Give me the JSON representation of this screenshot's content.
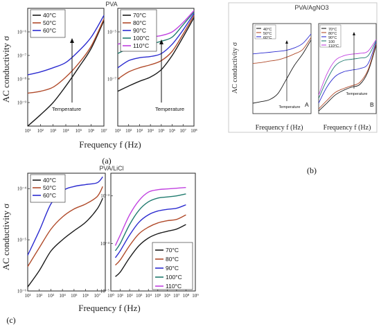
{
  "figures": {
    "a": {
      "title": "PVA",
      "caption": "(a)",
      "ylabel": "AC conductivity σ",
      "xlabel": "Frequency f (Hz)",
      "annotation": "Temperature"
    },
    "b": {
      "title": "PVA/AgNO3",
      "caption": "(b)",
      "ylabel": "AC conductivity σ",
      "xlabel": "Frequency f (Hz)",
      "annotation": "Temperature",
      "panel_letters": [
        "A",
        "B"
      ]
    },
    "c": {
      "title": "PVA/LiCl",
      "caption": "(c)",
      "ylabel": "AC conductivity σ",
      "xlabel": "Frequency f (Hz)"
    }
  },
  "colors": {
    "40": "#1a1a1a",
    "50": "#b04a2a",
    "60": "#2b2bd0",
    "70": "#1a1a1a",
    "80": "#b04a2a",
    "90": "#2b2bd0",
    "100": "#1f7a6e",
    "110": "#c040e0"
  },
  "chart_data": [
    {
      "id": "a-left",
      "type": "line",
      "x_scale": "log",
      "y_scale": "log",
      "xlim": [
        10,
        10000000
      ],
      "ylim": [
        1e-10,
        1e-05
      ],
      "xticks": [
        "10¹",
        "10²",
        "10³",
        "10⁴",
        "10⁵",
        "10⁶",
        "10⁷"
      ],
      "yticks": [
        "10⁻⁹",
        "10⁻⁸",
        "10⁻⁷",
        "10⁻⁶"
      ],
      "legend_position": "top-left",
      "series": [
        {
          "name": "40°C",
          "color_key": "40",
          "x": [
            10,
            100,
            1000,
            10000,
            100000,
            1000000,
            10000000
          ],
          "y": [
            1e-10,
            3e-10,
            1e-09,
            5e-09,
            3e-08,
            2e-07,
            3e-06
          ]
        },
        {
          "name": "50°C",
          "color_key": "50",
          "x": [
            10,
            100,
            1000,
            10000,
            100000,
            1000000,
            10000000
          ],
          "y": [
            2.5e-09,
            3e-09,
            4.5e-09,
            1.2e-08,
            4.5e-08,
            2.5e-07,
            3.5e-06
          ]
        },
        {
          "name": "60°C",
          "color_key": "60",
          "x": [
            10,
            100,
            1000,
            10000,
            100000,
            1000000,
            10000000
          ],
          "y": [
            1.5e-08,
            2e-08,
            3e-08,
            5e-08,
            1.5e-07,
            6e-07,
            5e-06
          ]
        }
      ]
    },
    {
      "id": "a-right",
      "type": "line",
      "x_scale": "log",
      "y_scale": "log",
      "xlim": [
        10,
        100000000
      ],
      "ylim": [
        1e-09,
        0.0001
      ],
      "xticks": [
        "10¹",
        "10²",
        "10³",
        "10⁴",
        "10⁵",
        "10⁶",
        "10⁷",
        "10⁸"
      ],
      "yticks": [
        "10⁻⁷",
        "10⁻⁵"
      ],
      "legend_position": "top-left",
      "series": [
        {
          "name": "70°C",
          "color_key": "70",
          "x": [
            10,
            100,
            1000,
            10000,
            100000,
            1000000,
            10000000,
            100000000
          ],
          "y": [
            3e-08,
            5e-08,
            8e-08,
            1.2e-07,
            2.5e-07,
            1e-06,
            6e-06,
            4e-05
          ]
        },
        {
          "name": "80°C",
          "color_key": "80",
          "x": [
            10,
            100,
            1000,
            10000,
            100000,
            1000000,
            10000000,
            100000000
          ],
          "y": [
            1e-07,
            2e-07,
            3e-07,
            4e-07,
            6e-07,
            1.5e-06,
            8e-06,
            5e-05
          ]
        },
        {
          "name": "90°C",
          "color_key": "90",
          "x": [
            10,
            100,
            1000,
            10000,
            100000,
            1000000,
            10000000,
            100000000
          ],
          "y": [
            3e-07,
            6e-07,
            8e-07,
            9e-07,
            1.2e-06,
            3e-06,
            1.2e-05,
            6e-05
          ]
        },
        {
          "name": "100°C",
          "color_key": "100",
          "x": [
            10,
            100,
            1000,
            10000,
            100000,
            1000000,
            10000000,
            100000000
          ],
          "y": [
            1.2e-06,
            2e-06,
            2.5e-06,
            3e-06,
            4e-06,
            6e-06,
            2e-05,
            7e-05
          ]
        },
        {
          "name": "110°C",
          "color_key": "110",
          "x": [
            10,
            100,
            1000,
            10000,
            100000,
            1000000,
            10000000,
            100000000
          ],
          "y": [
            3e-06,
            4e-06,
            5e-06,
            6e-06,
            7e-06,
            1e-05,
            2.5e-05,
            8e-05
          ]
        }
      ]
    },
    {
      "id": "b-left",
      "type": "line",
      "x_scale": "log",
      "y_scale": "log",
      "legend_position": "top-left",
      "panel_label": "A",
      "series": [
        {
          "name": "40°C",
          "color_key": "40",
          "x": [
            1,
            10,
            100,
            1000,
            10000,
            100000,
            1000000,
            10000000
          ],
          "y": [
            1e-08,
            1.2e-08,
            1.5e-08,
            3e-08,
            1.5e-07,
            8e-07,
            3e-06,
            1.5e-05
          ]
        },
        {
          "name": "50°C",
          "color_key": "50",
          "x": [
            1,
            10,
            100,
            1000,
            10000,
            100000,
            1000000,
            10000000
          ],
          "y": [
            1e-06,
            1.1e-06,
            1.3e-06,
            1.5e-06,
            2e-06,
            3e-06,
            5e-06,
            2e-05
          ]
        },
        {
          "name": "60°C",
          "color_key": "60",
          "x": [
            1,
            10,
            100,
            1000,
            10000,
            100000,
            1000000,
            10000000
          ],
          "y": [
            3e-06,
            3.3e-06,
            3.6e-06,
            4e-06,
            4.5e-06,
            6e-06,
            1e-05,
            3e-05
          ]
        }
      ]
    },
    {
      "id": "b-right",
      "type": "line",
      "x_scale": "log",
      "y_scale": "log",
      "legend_position": "top-left",
      "panel_label": "B",
      "series": [
        {
          "name": "70°C",
          "color_key": "70",
          "x": [
            1,
            10,
            100,
            1000,
            10000,
            100000,
            1000000,
            10000000
          ],
          "y": [
            1e-07,
            2e-07,
            4e-07,
            6e-07,
            8e-07,
            1e-06,
            3e-06,
            3e-05
          ]
        },
        {
          "name": "80°C",
          "color_key": "80",
          "x": [
            1,
            10,
            100,
            1000,
            10000,
            100000,
            1000000,
            10000000
          ],
          "y": [
            1.2e-07,
            2.5e-07,
            5e-07,
            7e-07,
            9e-07,
            1.2e-06,
            3.5e-06,
            3.5e-05
          ]
        },
        {
          "name": "90°C",
          "color_key": "90",
          "x": [
            1,
            10,
            100,
            1000,
            10000,
            100000,
            1000000,
            10000000
          ],
          "y": [
            2e-07,
            8e-07,
            2e-06,
            3e-06,
            3.5e-06,
            4e-06,
            6e-06,
            4e-05
          ]
        },
        {
          "name": "100",
          "color_key": "100",
          "x": [
            1,
            10,
            100,
            1000,
            10000,
            100000,
            1000000,
            10000000
          ],
          "y": [
            3e-07,
            1.5e-06,
            5e-06,
            8e-06,
            9e-06,
            1e-05,
            1.2e-05,
            4.5e-05
          ]
        },
        {
          "name": "110°C",
          "color_key": "110",
          "x": [
            1,
            10,
            100,
            1000,
            10000,
            100000,
            1000000,
            10000000
          ],
          "y": [
            4e-07,
            2.5e-06,
            8e-06,
            1.2e-05,
            1.4e-05,
            1.5e-05,
            1.8e-05,
            5e-05
          ]
        }
      ]
    },
    {
      "id": "c-left",
      "type": "line",
      "x_scale": "log",
      "y_scale": "log",
      "xlim": [
        10,
        50000000
      ],
      "ylim": [
        1e-06,
        0.0002
      ],
      "xticks": [
        "10¹",
        "10²",
        "10³",
        "10⁴",
        "10⁵",
        "10⁶",
        "10⁷"
      ],
      "yticks": [
        "10⁻⁶",
        "10⁻⁵",
        "10⁻⁴"
      ],
      "legend_position": "top-left",
      "series": [
        {
          "name": "40°C",
          "color_key": "40",
          "x": [
            10,
            100,
            1000,
            10000,
            100000,
            1000000,
            10000000,
            30000000
          ],
          "y": [
            1.2e-06,
            2.5e-06,
            6e-06,
            1e-05,
            1.5e-05,
            2.2e-05,
            4e-05,
            6.5e-05
          ]
        },
        {
          "name": "50°C",
          "color_key": "50",
          "x": [
            10,
            100,
            1000,
            10000,
            100000,
            1000000,
            10000000,
            30000000
          ],
          "y": [
            3e-06,
            7e-06,
            1.6e-05,
            2.8e-05,
            4e-05,
            5e-05,
            7e-05,
            0.00011
          ]
        },
        {
          "name": "60°C",
          "color_key": "60",
          "x": [
            10,
            100,
            1000,
            10000,
            100000,
            1000000,
            10000000,
            30000000
          ],
          "y": [
            5e-06,
            1.5e-05,
            5e-05,
            9e-05,
            0.00011,
            0.00012,
            0.00013,
            0.00017
          ]
        }
      ]
    },
    {
      "id": "c-right",
      "type": "line",
      "x_scale": "log",
      "y_scale": "log",
      "xlim": [
        1,
        1000000000
      ],
      "ylim": [
        1e-05,
        0.003
      ],
      "xticks": [
        "10⁰",
        "10¹",
        "10²",
        "10³",
        "10⁴",
        "10⁵",
        "10⁶",
        "10⁷",
        "10⁸",
        "10⁹"
      ],
      "yticks": [
        "10⁻⁵",
        "10⁻⁴",
        "10⁻³"
      ],
      "legend_position": "bottom-right",
      "series": [
        {
          "name": "70°C",
          "color_key": "70",
          "x": [
            3,
            10,
            100,
            1000,
            10000,
            100000,
            1000000,
            10000000,
            100000000
          ],
          "y": [
            2e-05,
            2.5e-05,
            5e-05,
            9e-05,
            0.00013,
            0.00016,
            0.00018,
            0.0002,
            0.00025
          ]
        },
        {
          "name": "80°C",
          "color_key": "80",
          "x": [
            3,
            10,
            100,
            1000,
            10000,
            100000,
            1000000,
            10000000,
            100000000
          ],
          "y": [
            3.5e-05,
            4.5e-05,
            9e-05,
            0.00016,
            0.00022,
            0.00027,
            0.0003,
            0.00032,
            0.0004
          ]
        },
        {
          "name": "90°C",
          "color_key": "90",
          "x": [
            3,
            10,
            100,
            1000,
            10000,
            100000,
            1000000,
            10000000,
            100000000
          ],
          "y": [
            5e-05,
            7e-05,
            0.00015,
            0.00028,
            0.0004,
            0.00048,
            0.00052,
            0.00055,
            0.00065
          ]
        },
        {
          "name": "100°C",
          "color_key": "100",
          "x": [
            3,
            10,
            100,
            1000,
            10000,
            100000,
            1000000,
            10000000,
            100000000
          ],
          "y": [
            7e-05,
            0.0001,
            0.00025,
            0.0005,
            0.00075,
            0.0009,
            0.00095,
            0.001,
            0.0011
          ]
        },
        {
          "name": "110°C",
          "color_key": "110",
          "x": [
            3,
            10,
            100,
            1000,
            10000,
            100000,
            1000000,
            10000000,
            100000000
          ],
          "y": [
            9e-05,
            0.00015,
            0.0004,
            0.0008,
            0.0012,
            0.00135,
            0.0014,
            0.00145,
            0.0015
          ]
        }
      ]
    }
  ]
}
